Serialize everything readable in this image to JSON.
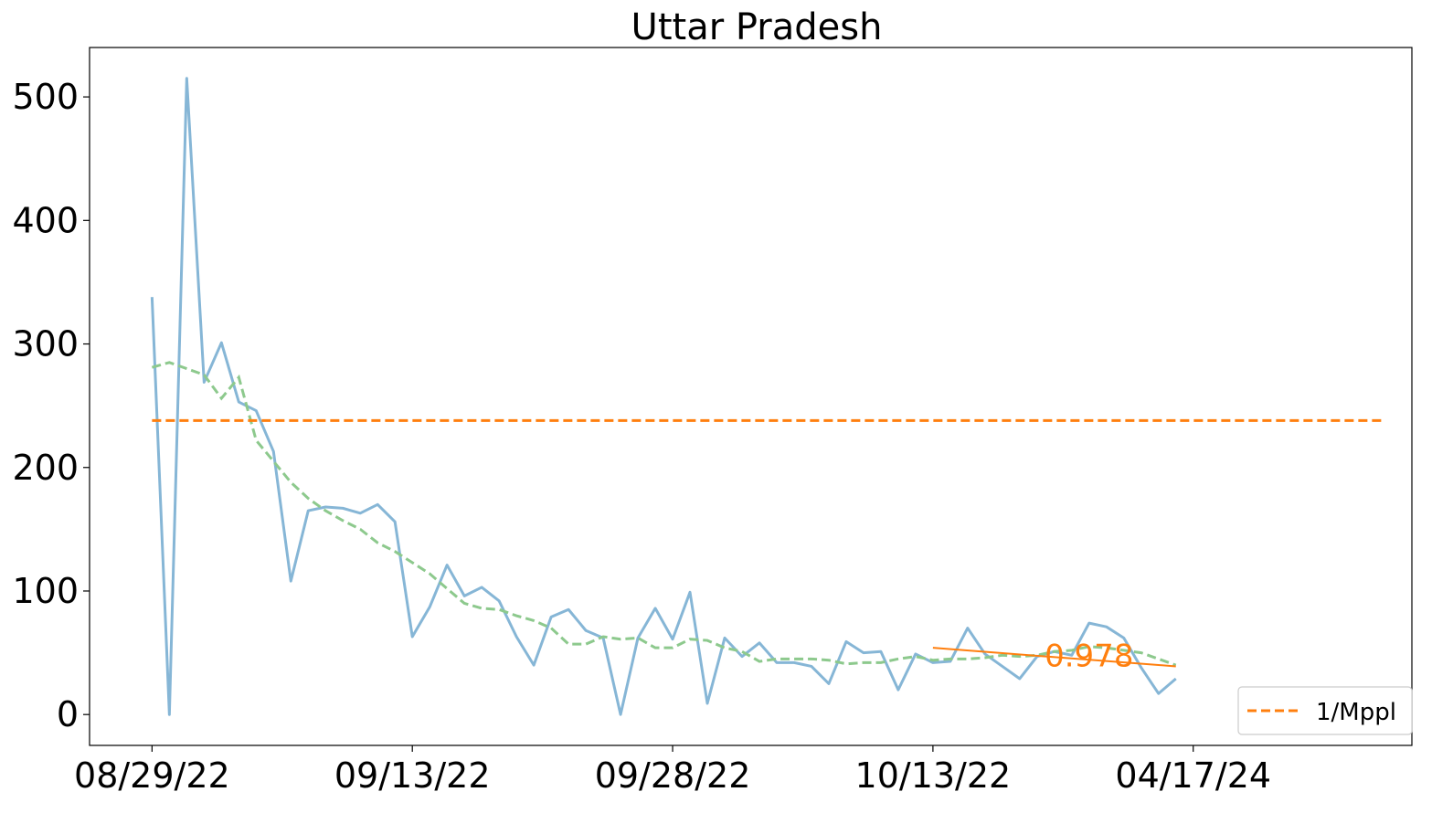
{
  "chart_data": {
    "type": "line",
    "title": "Uttar Pradesh",
    "xlabel": "",
    "ylabel": "",
    "x_tick_labels": [
      "08/29/22",
      "09/13/22",
      "09/28/22",
      "10/13/22",
      "04/17/24"
    ],
    "x_tick_indices": [
      0,
      15,
      30,
      45,
      60
    ],
    "x_range": [
      -3.6,
      72.6
    ],
    "y_ticks": [
      0,
      100,
      200,
      300,
      400,
      500
    ],
    "ylim": [
      -25,
      540
    ],
    "grid": false,
    "legend_placement": "lower-right",
    "series": [
      {
        "style": "solid",
        "color": "#86b6d6",
        "values": [
          338,
          0,
          515,
          269,
          301,
          253,
          246,
          213,
          108,
          165,
          168,
          167,
          163,
          170,
          156,
          63,
          87,
          121,
          96,
          103,
          92,
          63,
          40,
          79,
          85,
          68,
          62,
          0,
          62,
          86,
          61,
          99,
          9,
          62,
          47,
          58,
          42,
          42,
          39,
          25,
          59,
          50,
          51,
          20,
          49,
          42,
          43,
          70,
          49,
          39,
          29,
          47,
          51,
          48,
          74,
          71,
          62,
          38,
          17,
          29
        ]
      },
      {
        "style": "dashed",
        "color": "#8dc98d",
        "values": [
          281,
          285,
          280,
          275,
          256,
          273,
          222,
          205,
          188,
          175,
          165,
          157,
          150,
          139,
          132,
          123,
          114,
          102,
          90,
          86,
          85,
          80,
          76,
          70,
          57,
          57,
          63,
          61,
          62,
          54,
          54,
          61,
          60,
          54,
          51,
          43,
          45,
          45,
          45,
          44,
          41,
          42,
          42,
          45,
          47,
          44,
          45,
          45,
          46,
          48,
          47,
          48,
          51,
          52,
          55,
          54,
          52,
          50,
          45,
          40
        ]
      },
      {
        "name": "1/Mppl",
        "style": "dashed",
        "color": "#ff7f0e",
        "values": [
          238,
          238
        ]
      }
    ],
    "trend_line": {
      "x_start": 45,
      "x_end": 59,
      "y_start": 54,
      "y_end": 39,
      "color": "#ff7f0e"
    },
    "annotations": [
      {
        "text": "0.978",
        "x": 54,
        "y": 48,
        "color": "#ff7f0e"
      }
    ]
  }
}
